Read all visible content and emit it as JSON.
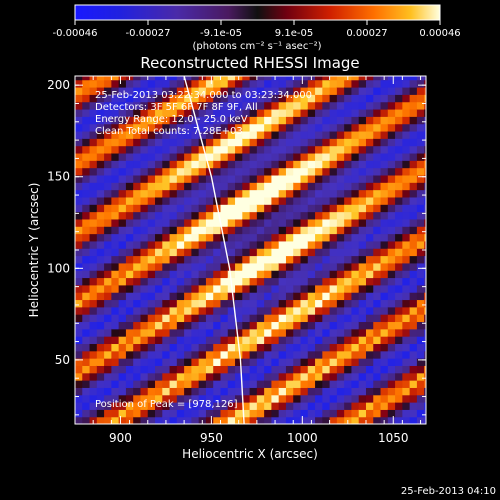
{
  "chart_data": {
    "type": "heatmap",
    "title": "Reconstructed RHESSI Image",
    "xlabel": "Heliocentric X (arcsec)",
    "ylabel": "Heliocentric Y (arcsec)",
    "xlim": [
      875,
      1068
    ],
    "ylim": [
      15,
      205
    ],
    "x_ticks": [
      900,
      950,
      1000,
      1050
    ],
    "y_ticks": [
      50,
      100,
      150,
      200
    ],
    "colorbar": {
      "unit_label": "(photons cm⁻² s⁻¹ asec⁻²)",
      "ticks": [
        "-0.00046",
        "-0.00027",
        "-9.1e-05",
        "9.1e-05",
        "0.00027",
        "0.00046"
      ],
      "min": -0.00046,
      "max": 0.00046
    },
    "info_lines": [
      "25-Feb-2013 03:22:34.000 to 03:23:34.000",
      "Detectors: 3F 5F 6F 7F 8F 9F, All",
      "Energy Range: 12.0 - 25.0 keV",
      "Clean   Total counts: 7.28E+03"
    ],
    "peak_label": "Position of Peak = [978,126]",
    "peak": [
      978,
      126
    ],
    "limb_curve": [
      [
        935,
        205
      ],
      [
        950,
        150
      ],
      [
        960,
        100
      ],
      [
        966,
        50
      ],
      [
        968,
        15
      ]
    ],
    "footer_timestamp": "25-Feb-2013 04:10"
  },
  "colors": {
    "limb": "#ffffff",
    "axes": "#ffffff",
    "background": "#000000"
  }
}
